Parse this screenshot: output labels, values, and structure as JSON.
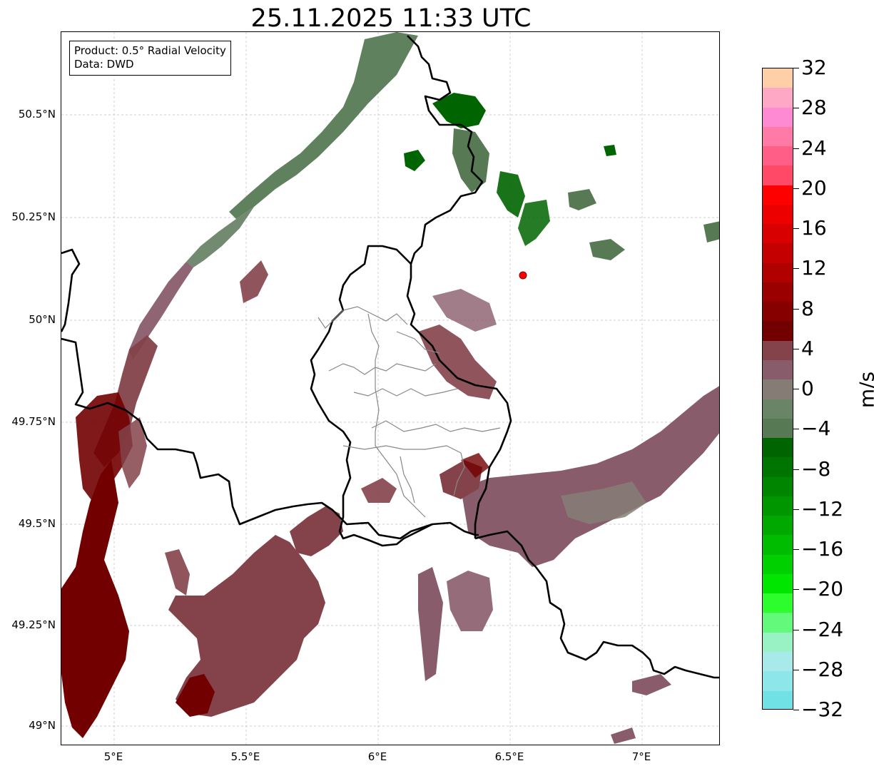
{
  "title": "25.11.2025 11:33 UTC",
  "info_box": {
    "product": "Product: 0.5° Radial Velocity",
    "data_source": "Data: DWD"
  },
  "latitude_ticks": [
    "50.5°N",
    "50.25°N",
    "50°N",
    "49.75°N",
    "49.5°N",
    "49.25°N",
    "49°N"
  ],
  "longitude_ticks": [
    "5°E",
    "5.5°E",
    "6°E",
    "6.5°E",
    "7°E"
  ],
  "radar_site": {
    "lon": 6.548,
    "lat": 50.11,
    "marker_color": "#ff0000"
  },
  "colorbar": {
    "unit": "m/s",
    "ticks": [
      "32",
      "28",
      "24",
      "20",
      "16",
      "12",
      "8",
      "4",
      "0",
      "−4",
      "−8",
      "−12",
      "−16",
      "−20",
      "−24",
      "−28",
      "−32"
    ],
    "colors_top_to_bottom": [
      "#ffcfa8",
      "#ffa8c6",
      "#ff8ad4",
      "#ff7aa6",
      "#ff5f86",
      "#ff4966",
      "#ff0000",
      "#ec0000",
      "#d80000",
      "#c40000",
      "#b00000",
      "#9a0000",
      "#870000",
      "#720000",
      "#84424a",
      "#895c6c",
      "#867c76",
      "#6a8468",
      "#577a55",
      "#006400",
      "#007400",
      "#008500",
      "#009600",
      "#00a900",
      "#00bc00",
      "#00d000",
      "#00e600",
      "#2dfc2d",
      "#63f97b",
      "#98f2c3",
      "#a8eaea",
      "#8de6ea",
      "#70e2e6"
    ]
  },
  "velocity_colors": {
    "strong_outbound": "#720000",
    "outbound": "#84424a",
    "weak_outbound": "#895c6c",
    "near_zero": "#867c76",
    "weak_inbound": "#6a8468",
    "inbound": "#577a55",
    "strong_inbound": "#006400"
  }
}
